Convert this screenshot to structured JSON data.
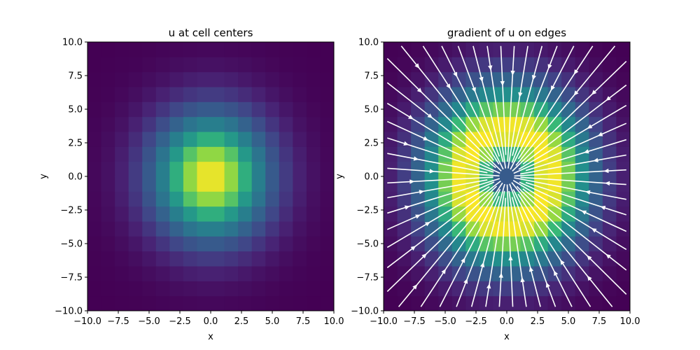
{
  "chart_data": [
    {
      "type": "heatmap",
      "title": "u at cell centers",
      "xlabel": "x",
      "ylabel": "y",
      "xlim": [
        -10,
        10
      ],
      "ylim": [
        -10,
        10
      ],
      "xticks": [
        "−10.0",
        "−7.5",
        "−5.0",
        "−2.5",
        "0.0",
        "2.5",
        "5.0",
        "7.5",
        "10.0"
      ],
      "yticks": [
        "−10.0",
        "−7.5",
        "−5.0",
        "−2.5",
        "0.0",
        "2.5",
        "5.0",
        "7.5",
        "10.0"
      ],
      "colormap": "viridis",
      "grid_cells": [
        18,
        18
      ],
      "field": "gaussian centered at (0, 0), peak value 1.0 at the center, decaying to about 0 at the edges (width ≈ 3.5)",
      "grid": false
    },
    {
      "type": "heatmap",
      "title": "gradient of u on edges",
      "xlabel": "x",
      "ylabel": "y",
      "xlim": [
        -10,
        10
      ],
      "ylim": [
        -10,
        10
      ],
      "xticks": [
        "−10.0",
        "−7.5",
        "−5.0",
        "−2.5",
        "0.0",
        "2.5",
        "5.0",
        "7.5",
        "10.0"
      ],
      "yticks": [
        "−10.0",
        "−7.5",
        "−5.0",
        "−2.5",
        "0.0",
        "2.5",
        "5.0",
        "7.5",
        "10.0"
      ],
      "colormap": "viridis",
      "grid_cells": [
        18,
        18
      ],
      "field": "magnitude of gradient of u: ring-shaped maximum at radius ≈ 2.5, low at the center and edges",
      "overlay": "streamlines (white) converging toward the center point (0, 0)",
      "grid": false
    }
  ],
  "colors": {
    "streamline": "#ffffff",
    "viridis_low": "#440154",
    "viridis_high": "#fde725"
  }
}
